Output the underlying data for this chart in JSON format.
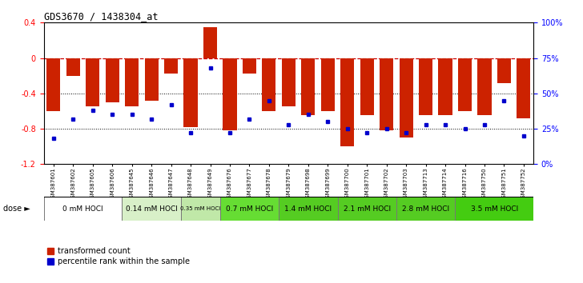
{
  "title": "GDS3670 / 1438304_at",
  "samples": [
    "GSM387601",
    "GSM387602",
    "GSM387605",
    "GSM387606",
    "GSM387645",
    "GSM387646",
    "GSM387647",
    "GSM387648",
    "GSM387649",
    "GSM387676",
    "GSM387677",
    "GSM387678",
    "GSM387679",
    "GSM387698",
    "GSM387699",
    "GSM387700",
    "GSM387701",
    "GSM387702",
    "GSM387703",
    "GSM387713",
    "GSM387714",
    "GSM387716",
    "GSM387750",
    "GSM387751",
    "GSM387752"
  ],
  "red_values": [
    -0.6,
    -0.2,
    -0.55,
    -0.5,
    -0.55,
    -0.48,
    -0.18,
    -0.78,
    0.35,
    -0.82,
    -0.18,
    -0.6,
    -0.55,
    -0.65,
    -0.6,
    -1.0,
    -0.65,
    -0.82,
    -0.9,
    -0.65,
    -0.65,
    -0.6,
    -0.65,
    -0.28,
    -0.68
  ],
  "blue_percentiles": [
    18,
    32,
    38,
    35,
    35,
    32,
    42,
    22,
    68,
    22,
    32,
    45,
    28,
    35,
    30,
    25,
    22,
    25,
    22,
    28,
    28,
    25,
    28,
    45,
    20
  ],
  "dose_groups": [
    {
      "label": "0 mM HOCl",
      "color": "#ffffff",
      "start": 0,
      "end": 4
    },
    {
      "label": "0.14 mM HOCl",
      "color": "#d8f0c8",
      "start": 4,
      "end": 7
    },
    {
      "label": "0.35 mM HOCl",
      "color": "#c0e8a8",
      "start": 7,
      "end": 9
    },
    {
      "label": "0.7 mM HOCl",
      "color": "#66dd33",
      "start": 9,
      "end": 12
    },
    {
      "label": "1.4 mM HOCl",
      "color": "#55cc22",
      "start": 12,
      "end": 15
    },
    {
      "label": "2.1 mM HOCl",
      "color": "#55cc22",
      "start": 15,
      "end": 18
    },
    {
      "label": "2.8 mM HOCl",
      "color": "#55cc22",
      "start": 18,
      "end": 21
    },
    {
      "label": "3.5 mM HOCl",
      "color": "#44cc11",
      "start": 21,
      "end": 25
    }
  ],
  "ylim_left": [
    -1.2,
    0.4
  ],
  "ylim_right": [
    0,
    100
  ],
  "yticks_left": [
    -1.2,
    -0.8,
    -0.4,
    0.0,
    0.4
  ],
  "ytick_left_labels": [
    "-1.2",
    "-0.8",
    "-0.4",
    "0",
    "0.4"
  ],
  "yticks_right": [
    0,
    25,
    50,
    75,
    100
  ],
  "ytick_right_labels": [
    "0%",
    "25%",
    "50%",
    "75%",
    "100%"
  ],
  "hline_color": "#cc0000",
  "dot_color": "#0000cc",
  "bar_color": "#cc2200",
  "background_color": "#ffffff",
  "dose_label": "dose",
  "legend_red": "transformed count",
  "legend_blue": "percentile rank within the sample",
  "bar_width": 0.7
}
